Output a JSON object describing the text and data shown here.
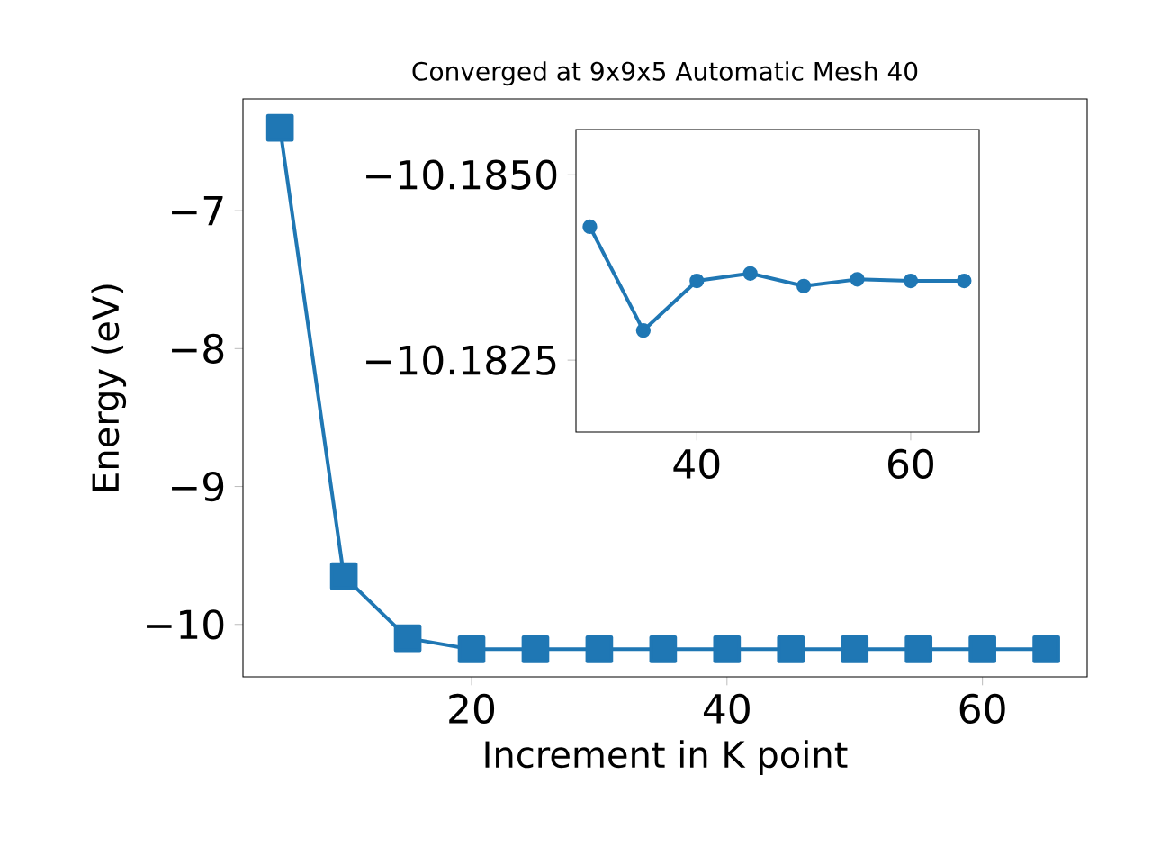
{
  "chart_data": [
    {
      "type": "line",
      "title": "Converged at 9x9x5 Automatic Mesh 40",
      "xlabel": "Increment in K point",
      "ylabel": "Energy (eV)",
      "x": [
        5,
        10,
        15,
        20,
        25,
        30,
        35,
        40,
        45,
        50,
        55,
        60,
        65
      ],
      "series": [
        {
          "color": "#1f77b4",
          "values": [
            -6.4,
            -9.65,
            -10.1,
            -10.18,
            -10.18,
            -10.18,
            -10.18,
            -10.18,
            -10.18,
            -10.18,
            -10.18,
            -10.18,
            -10.18
          ]
        }
      ],
      "xlim": [
        2.1,
        68.2
      ],
      "ylim": [
        -10.38,
        -6.19
      ],
      "xticks": [
        20,
        40,
        60
      ],
      "yticks": [
        {
          "value": -10,
          "label": "−10"
        },
        {
          "value": -9,
          "label": "−9"
        },
        {
          "value": -8,
          "label": "−8"
        },
        {
          "value": -7,
          "label": "−7"
        }
      ],
      "marker": "square",
      "line_style": "solid",
      "grid": false
    },
    {
      "type": "line",
      "x": [
        30,
        35,
        40,
        45,
        50,
        55,
        60,
        65
      ],
      "series": [
        {
          "color": "#1f77b4",
          "values": [
            -10.1843,
            -10.1829,
            -10.18357,
            -10.18367,
            -10.1835,
            -10.18359,
            -10.18357,
            -10.18357
          ]
        }
      ],
      "xlim": [
        28.7,
        66.4
      ],
      "ylim": [
        -10.18153,
        -10.18561
      ],
      "xticks": [
        40,
        60
      ],
      "yticks": [
        {
          "value": -10.185,
          "label": "−10.1850"
        },
        {
          "value": -10.1825,
          "label": "−10.1825"
        }
      ],
      "marker": "circle",
      "line_style": "solid",
      "grid": false
    }
  ]
}
